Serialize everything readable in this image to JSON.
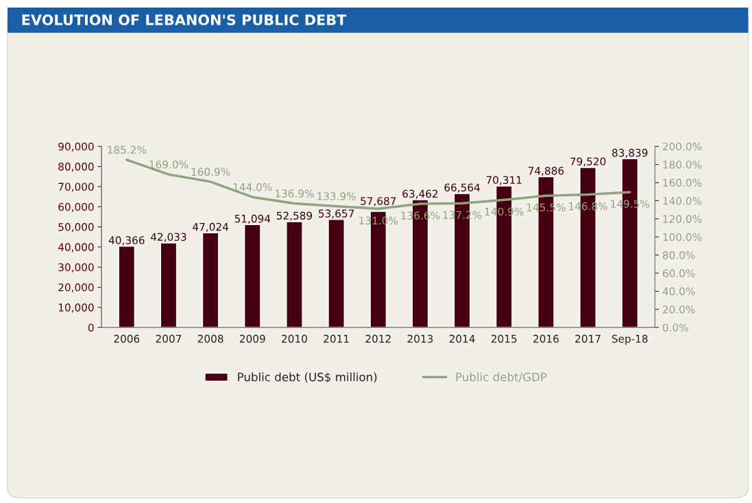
{
  "chart_data": {
    "type": "bar",
    "title": "EVOLUTION OF LEBANON'S PUBLIC DEBT",
    "categories": [
      "2006",
      "2007",
      "2008",
      "2009",
      "2010",
      "2011",
      "2012",
      "2013",
      "2014",
      "2015",
      "2016",
      "2017",
      "Sep-18"
    ],
    "series": [
      {
        "name": "Public debt (US$ million)",
        "color": "#470012",
        "values": [
          40366,
          42033,
          47024,
          51094,
          52589,
          53657,
          57687,
          63462,
          66564,
          70311,
          74886,
          79520,
          83839
        ],
        "value_labels": [
          "40,366",
          "42,033",
          "47,024",
          "51,094",
          "52,589",
          "53,657",
          "57,687",
          "63,462",
          "66,564",
          "70,311",
          "74,886",
          "79,520",
          "83,839"
        ]
      },
      {
        "name": "Public debt/GDP",
        "type": "line",
        "axis": "y2",
        "color": "#8fa37c",
        "values": [
          185.2,
          169.0,
          160.9,
          144.0,
          136.9,
          133.9,
          131.0,
          136.6,
          137.2,
          140.9,
          145.5,
          146.8,
          149.5
        ],
        "value_labels": [
          "185.2%",
          "169.0%",
          "160.9%",
          "144.0%",
          "136.9%",
          "133.9%",
          "131.0%",
          "136.6%",
          "137.2%",
          "140.9%",
          "145.5%",
          "146.8%",
          "149.5%"
        ]
      }
    ],
    "ylim": [
      0,
      90000
    ],
    "yticks": [
      0,
      {
        "value": 10000,
        "label": "10,000"
      },
      {
        "value": 20000,
        "label": "20,000"
      },
      {
        "value": 30000,
        "label": "30,000"
      },
      {
        "value": 40000,
        "label": "40,000"
      },
      {
        "value": 50000,
        "label": "50,000"
      },
      {
        "value": 60000,
        "label": "60,000"
      },
      {
        "value": 70000,
        "label": "70,000"
      },
      {
        "value": 80000,
        "label": "80,000"
      },
      {
        "value": 90000,
        "label": "90,000"
      }
    ],
    "y2lim": [
      0,
      200
    ],
    "y2ticks": [
      {
        "value": 0,
        "label": "0.0%"
      },
      {
        "value": 20,
        "label": "20.0%"
      },
      {
        "value": 40,
        "label": "40.0%"
      },
      {
        "value": 60,
        "label": "60.0%"
      },
      {
        "value": 80,
        "label": "80.0%"
      },
      {
        "value": 100,
        "label": "100.0%"
      },
      {
        "value": 120,
        "label": "120.0%"
      },
      {
        "value": 140,
        "label": "140.0%"
      },
      {
        "value": 160,
        "label": "160.0%"
      },
      {
        "value": 180,
        "label": "180.0%"
      },
      {
        "value": 200,
        "label": "200.0%"
      }
    ],
    "grid": false,
    "legend": "bottom",
    "marker": "none",
    "line_style": "solid"
  }
}
